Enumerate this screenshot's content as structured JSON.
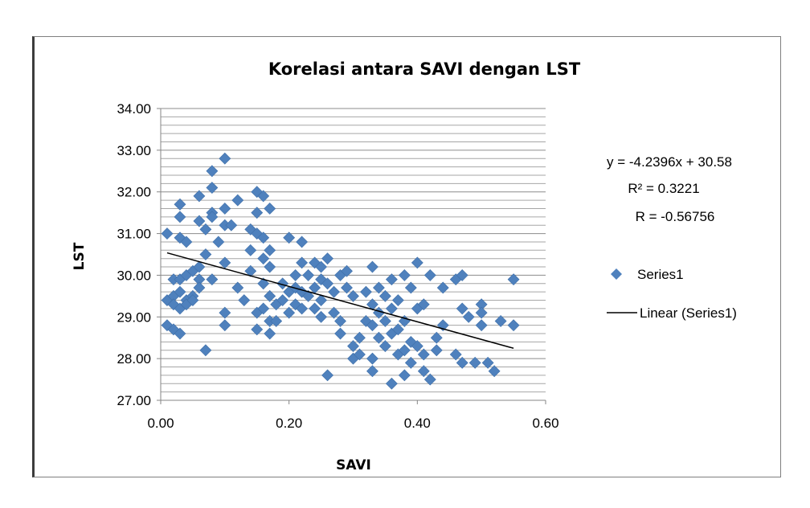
{
  "chart_data": {
    "type": "scatter",
    "title": "Korelasi antara SAVI dengan LST",
    "xlabel": "SAVI",
    "ylabel": "LST",
    "xlim": [
      0.0,
      0.6
    ],
    "ylim": [
      27.0,
      34.0
    ],
    "x_ticks": [
      "0.00",
      "0.20",
      "0.40",
      "0.60"
    ],
    "y_ticks": [
      "27.00",
      "28.00",
      "29.00",
      "30.00",
      "31.00",
      "32.00",
      "33.00",
      "34.00"
    ],
    "y_minor_step": 0.2,
    "grid": true,
    "legend_position": "right",
    "marker_color": "#4F81BD",
    "trend_color": "#000000",
    "series": [
      {
        "name": "Series1",
        "points": [
          [
            0.01,
            31.0
          ],
          [
            0.01,
            28.8
          ],
          [
            0.01,
            29.4
          ],
          [
            0.02,
            29.9
          ],
          [
            0.02,
            29.5
          ],
          [
            0.02,
            29.3
          ],
          [
            0.02,
            28.7
          ],
          [
            0.03,
            31.7
          ],
          [
            0.03,
            31.4
          ],
          [
            0.03,
            30.9
          ],
          [
            0.03,
            29.6
          ],
          [
            0.03,
            29.2
          ],
          [
            0.03,
            28.6
          ],
          [
            0.03,
            29.9
          ],
          [
            0.04,
            30.8
          ],
          [
            0.04,
            29.4
          ],
          [
            0.04,
            29.3
          ],
          [
            0.04,
            30.0
          ],
          [
            0.05,
            29.5
          ],
          [
            0.05,
            30.1
          ],
          [
            0.05,
            29.4
          ],
          [
            0.06,
            31.9
          ],
          [
            0.06,
            31.3
          ],
          [
            0.06,
            29.9
          ],
          [
            0.06,
            30.2
          ],
          [
            0.06,
            29.7
          ],
          [
            0.07,
            28.2
          ],
          [
            0.07,
            31.1
          ],
          [
            0.07,
            30.5
          ],
          [
            0.08,
            32.5
          ],
          [
            0.08,
            32.1
          ],
          [
            0.08,
            31.5
          ],
          [
            0.08,
            29.9
          ],
          [
            0.08,
            31.4
          ],
          [
            0.09,
            30.8
          ],
          [
            0.1,
            32.8
          ],
          [
            0.1,
            31.2
          ],
          [
            0.1,
            31.6
          ],
          [
            0.1,
            30.3
          ],
          [
            0.1,
            29.1
          ],
          [
            0.1,
            28.8
          ],
          [
            0.11,
            31.2
          ],
          [
            0.12,
            31.8
          ],
          [
            0.12,
            29.7
          ],
          [
            0.13,
            29.4
          ],
          [
            0.14,
            31.1
          ],
          [
            0.14,
            30.6
          ],
          [
            0.14,
            30.1
          ],
          [
            0.15,
            32.0
          ],
          [
            0.15,
            31.5
          ],
          [
            0.15,
            31.0
          ],
          [
            0.15,
            29.1
          ],
          [
            0.15,
            28.7
          ],
          [
            0.16,
            31.9
          ],
          [
            0.16,
            30.9
          ],
          [
            0.16,
            30.4
          ],
          [
            0.16,
            29.8
          ],
          [
            0.16,
            29.2
          ],
          [
            0.17,
            31.6
          ],
          [
            0.17,
            30.6
          ],
          [
            0.17,
            30.2
          ],
          [
            0.17,
            29.5
          ],
          [
            0.17,
            28.9
          ],
          [
            0.17,
            28.6
          ],
          [
            0.18,
            29.3
          ],
          [
            0.18,
            28.9
          ],
          [
            0.19,
            29.4
          ],
          [
            0.19,
            29.8
          ],
          [
            0.2,
            30.9
          ],
          [
            0.2,
            29.6
          ],
          [
            0.2,
            29.1
          ],
          [
            0.21,
            30.0
          ],
          [
            0.21,
            29.7
          ],
          [
            0.21,
            29.3
          ],
          [
            0.22,
            30.8
          ],
          [
            0.22,
            30.3
          ],
          [
            0.22,
            29.6
          ],
          [
            0.22,
            29.2
          ],
          [
            0.23,
            30.0
          ],
          [
            0.23,
            29.5
          ],
          [
            0.24,
            30.3
          ],
          [
            0.24,
            29.7
          ],
          [
            0.24,
            29.2
          ],
          [
            0.25,
            30.2
          ],
          [
            0.25,
            29.9
          ],
          [
            0.25,
            29.4
          ],
          [
            0.25,
            29.0
          ],
          [
            0.26,
            27.6
          ],
          [
            0.26,
            30.4
          ],
          [
            0.26,
            29.8
          ],
          [
            0.27,
            29.6
          ],
          [
            0.27,
            29.1
          ],
          [
            0.28,
            28.9
          ],
          [
            0.28,
            30.0
          ],
          [
            0.28,
            28.6
          ],
          [
            0.29,
            29.7
          ],
          [
            0.29,
            30.1
          ],
          [
            0.3,
            28.3
          ],
          [
            0.3,
            28.0
          ],
          [
            0.3,
            29.5
          ],
          [
            0.31,
            28.5
          ],
          [
            0.31,
            28.1
          ],
          [
            0.32,
            29.6
          ],
          [
            0.32,
            28.9
          ],
          [
            0.33,
            30.2
          ],
          [
            0.33,
            29.3
          ],
          [
            0.33,
            28.8
          ],
          [
            0.33,
            28.0
          ],
          [
            0.33,
            27.7
          ],
          [
            0.34,
            29.7
          ],
          [
            0.34,
            29.1
          ],
          [
            0.34,
            28.5
          ],
          [
            0.35,
            29.5
          ],
          [
            0.35,
            28.9
          ],
          [
            0.35,
            28.3
          ],
          [
            0.36,
            29.9
          ],
          [
            0.36,
            29.2
          ],
          [
            0.36,
            28.6
          ],
          [
            0.36,
            27.4
          ],
          [
            0.37,
            29.4
          ],
          [
            0.37,
            28.7
          ],
          [
            0.37,
            28.1
          ],
          [
            0.38,
            30.0
          ],
          [
            0.38,
            28.9
          ],
          [
            0.38,
            28.2
          ],
          [
            0.38,
            27.6
          ],
          [
            0.39,
            29.7
          ],
          [
            0.39,
            28.4
          ],
          [
            0.39,
            27.9
          ],
          [
            0.4,
            30.3
          ],
          [
            0.4,
            29.2
          ],
          [
            0.4,
            28.3
          ],
          [
            0.41,
            29.3
          ],
          [
            0.41,
            28.1
          ],
          [
            0.41,
            27.7
          ],
          [
            0.42,
            30.0
          ],
          [
            0.42,
            27.5
          ],
          [
            0.43,
            28.5
          ],
          [
            0.43,
            28.2
          ],
          [
            0.44,
            29.7
          ],
          [
            0.44,
            28.8
          ],
          [
            0.46,
            29.9
          ],
          [
            0.46,
            28.1
          ],
          [
            0.47,
            30.0
          ],
          [
            0.47,
            29.2
          ],
          [
            0.47,
            27.9
          ],
          [
            0.48,
            29.0
          ],
          [
            0.49,
            27.9
          ],
          [
            0.5,
            29.3
          ],
          [
            0.5,
            28.8
          ],
          [
            0.5,
            29.1
          ],
          [
            0.51,
            27.9
          ],
          [
            0.52,
            27.7
          ],
          [
            0.53,
            28.9
          ],
          [
            0.55,
            29.9
          ],
          [
            0.55,
            28.8
          ]
        ]
      },
      {
        "name": "Linear (Series1)",
        "slope": -4.2396,
        "intercept": 30.58,
        "x_range": [
          0.01,
          0.55
        ]
      }
    ],
    "annotations": {
      "equation": "y = -4.2396x + 30.58",
      "r2": "R² = 0.3221",
      "r": "R  = -0.56756"
    }
  }
}
